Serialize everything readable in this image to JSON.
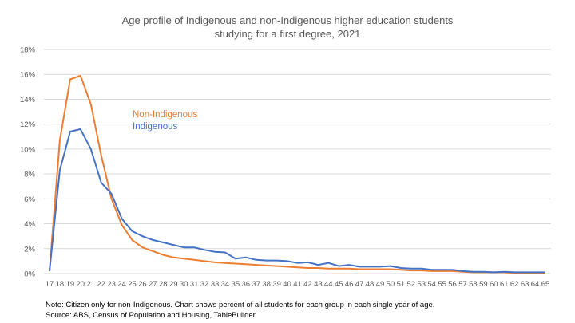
{
  "chart_data": {
    "type": "line",
    "title": [
      "Age profile of Indigenous and non-Indigenous higher education students",
      "studying for a first degree, 2021"
    ],
    "xlabel": "",
    "ylabel": "",
    "x": [
      17,
      18,
      19,
      20,
      21,
      22,
      23,
      24,
      25,
      26,
      27,
      28,
      29,
      30,
      31,
      32,
      33,
      34,
      35,
      36,
      37,
      38,
      39,
      40,
      41,
      42,
      43,
      44,
      45,
      46,
      47,
      48,
      49,
      50,
      51,
      52,
      53,
      54,
      55,
      56,
      57,
      58,
      59,
      60,
      61,
      62,
      63,
      64,
      65
    ],
    "ylim": [
      0,
      18
    ],
    "yticks": [
      "0%",
      "2%",
      "4%",
      "6%",
      "8%",
      "10%",
      "12%",
      "14%",
      "16%",
      "18%"
    ],
    "grid": true,
    "legend_placement": "inline-upper-left",
    "series": [
      {
        "name": "Non-Indigenous",
        "color": "#ED7D31",
        "values": [
          0.2,
          10.7,
          15.6,
          15.9,
          13.6,
          9.5,
          6.0,
          3.9,
          2.7,
          2.1,
          1.8,
          1.5,
          1.3,
          1.2,
          1.1,
          1.0,
          0.9,
          0.85,
          0.8,
          0.75,
          0.7,
          0.65,
          0.6,
          0.55,
          0.5,
          0.45,
          0.45,
          0.4,
          0.4,
          0.4,
          0.35,
          0.35,
          0.35,
          0.35,
          0.3,
          0.25,
          0.25,
          0.2,
          0.2,
          0.2,
          0.15,
          0.1,
          0.1,
          0.1,
          0.1,
          0.05,
          0.05,
          0.05,
          0.05
        ]
      },
      {
        "name": "Indigenous",
        "color": "#4472C4",
        "values": [
          0.2,
          8.3,
          11.4,
          11.6,
          10.0,
          7.3,
          6.4,
          4.4,
          3.4,
          3.0,
          2.7,
          2.5,
          2.3,
          2.1,
          2.1,
          1.9,
          1.75,
          1.7,
          1.2,
          1.3,
          1.1,
          1.05,
          1.05,
          1.0,
          0.85,
          0.9,
          0.7,
          0.85,
          0.6,
          0.7,
          0.55,
          0.55,
          0.55,
          0.6,
          0.45,
          0.4,
          0.4,
          0.3,
          0.3,
          0.3,
          0.2,
          0.15,
          0.15,
          0.1,
          0.15,
          0.1,
          0.1,
          0.1,
          0.1
        ]
      }
    ],
    "notes": [
      "Note: Citizen only for non-Indigenous. Chart shows percent of all students for each group in each single year of age.",
      "Source: ABS, Census of Population and Housing, TableBuilder"
    ]
  }
}
